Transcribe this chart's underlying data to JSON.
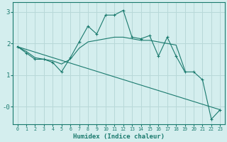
{
  "xlabel": "Humidex (Indice chaleur)",
  "ylabel": "",
  "bg_color": "#d4eeee",
  "grid_color": "#b8d8d8",
  "line_color": "#1a7a6e",
  "xlim": [
    -0.5,
    23.5
  ],
  "ylim": [
    -0.55,
    3.3
  ],
  "line1_x": [
    0,
    1,
    2,
    3,
    4,
    5,
    6,
    7,
    8,
    9,
    10,
    11,
    12,
    13,
    14,
    15,
    16,
    17,
    18,
    19,
    20,
    21,
    22,
    23
  ],
  "line1_y": [
    1.9,
    1.7,
    1.5,
    1.5,
    1.4,
    1.1,
    1.55,
    2.05,
    2.55,
    2.3,
    2.9,
    2.9,
    3.05,
    2.2,
    2.15,
    2.25,
    1.6,
    2.2,
    1.6,
    1.1,
    1.1,
    0.85,
    -0.4,
    -0.1
  ],
  "line2_x": [
    0,
    1,
    2,
    3,
    4,
    5,
    6,
    7,
    8,
    9,
    10,
    11,
    12,
    13,
    14,
    15,
    16,
    17,
    18,
    19
  ],
  "line2_y": [
    1.9,
    1.75,
    1.55,
    1.5,
    1.45,
    1.35,
    1.5,
    1.85,
    2.05,
    2.1,
    2.15,
    2.2,
    2.2,
    2.15,
    2.1,
    2.1,
    2.05,
    2.0,
    1.95,
    1.15
  ],
  "line3_x": [
    0,
    23
  ],
  "line3_y": [
    1.9,
    -0.1
  ]
}
